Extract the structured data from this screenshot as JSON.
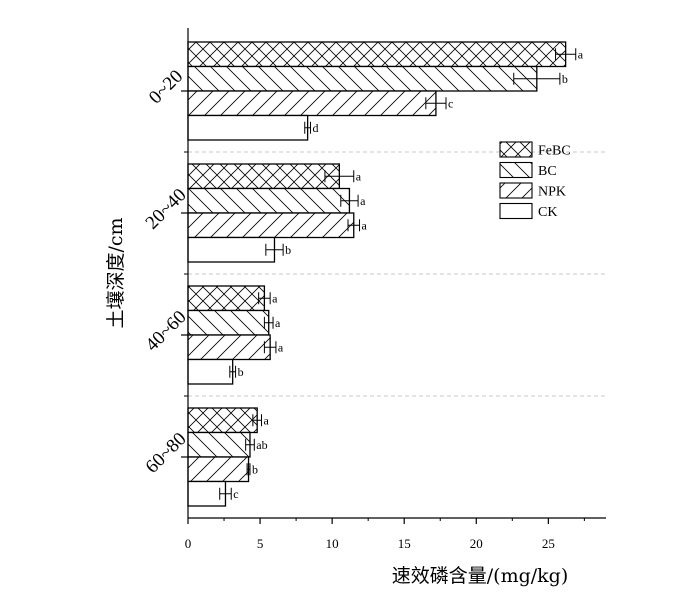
{
  "chart_data": {
    "type": "bar",
    "orientation": "horizontal",
    "xlabel": "速效磷含量/(mg/kg)",
    "ylabel": "土壤深度/cm",
    "xlim": [
      0,
      29
    ],
    "xticks": [
      0,
      5,
      10,
      15,
      20,
      25
    ],
    "categories": [
      "0~20",
      "20~40",
      "40~60",
      "60~80"
    ],
    "series": [
      {
        "name": "FeBC",
        "pattern": "crosshatch",
        "values": [
          26.2,
          10.5,
          5.3,
          4.8
        ],
        "errors": [
          0.7,
          1.0,
          0.4,
          0.3
        ],
        "labels": [
          "a",
          "a",
          "a",
          "a"
        ]
      },
      {
        "name": "BC",
        "pattern": "backslash",
        "values": [
          24.2,
          11.2,
          5.6,
          4.3
        ],
        "errors": [
          1.6,
          0.6,
          0.3,
          0.3
        ],
        "labels": [
          "b",
          "a",
          "a",
          "ab"
        ]
      },
      {
        "name": "NPK",
        "pattern": "forwardslash",
        "values": [
          17.2,
          11.5,
          5.7,
          4.2
        ],
        "errors": [
          0.7,
          0.4,
          0.4,
          0.1
        ],
        "labels": [
          "c",
          "a",
          "a",
          "b"
        ]
      },
      {
        "name": "CK",
        "pattern": "none",
        "values": [
          8.3,
          6.0,
          3.1,
          2.6
        ],
        "errors": [
          0.2,
          0.6,
          0.2,
          0.4
        ],
        "labels": [
          "d",
          "b",
          "b",
          "c"
        ]
      }
    ],
    "legend_position": "right-middle",
    "separators": "dashed",
    "colors": {
      "bar_fill": "#ffffff",
      "stroke": "#000000",
      "separator": "#c8c8c8"
    }
  }
}
